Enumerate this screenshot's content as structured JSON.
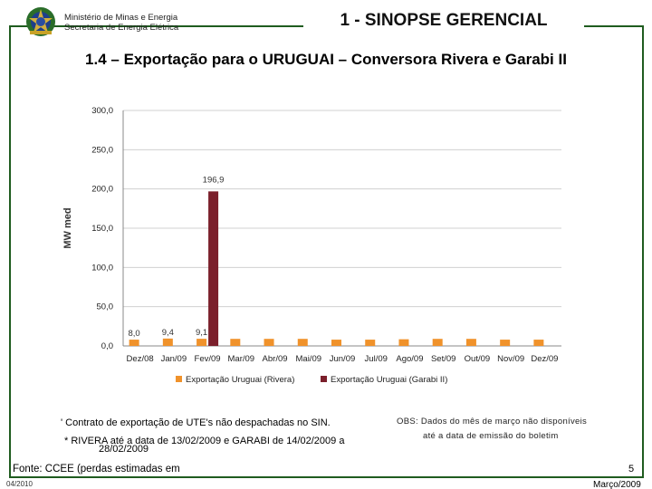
{
  "header": {
    "ministry_line1": "Ministério de Minas e Energia",
    "ministry_line2": "Secretaria de Energia Elétrica",
    "section_title": "1 - SINOPSE GERENCIAL"
  },
  "page_title": "1.4 – Exportação para o URUGUAI – Conversora Rivera e Garabi II",
  "chart_data": {
    "type": "bar",
    "title": "",
    "xlabel": "",
    "ylabel": "MW med",
    "ylim": [
      0,
      300
    ],
    "y_ticks": [
      "300,0",
      "250,0",
      "200,0",
      "150,0",
      "100,0",
      "50,0",
      "0,0"
    ],
    "categories": [
      "Dez/08",
      "Jan/09",
      "Fev/09",
      "Mar/09",
      "Abr/09",
      "Mai/09",
      "Jun/09",
      "Jul/09",
      "Ago/09",
      "Set/09",
      "Out/09",
      "Nov/09",
      "Dez/09"
    ],
    "series": [
      {
        "name": "Exportação Uruguai (Rivera)",
        "color": "#f0922b",
        "values": [
          8.0,
          9.4,
          9.1,
          9.0,
          9.0,
          9.0,
          8.0,
          8.0,
          8.5,
          9.0,
          9.0,
          8.0,
          8.0
        ],
        "labels": [
          "8,0",
          "9,4",
          "9,1",
          "",
          "",
          "",
          "",
          "",
          "",
          "",
          "",
          "",
          ""
        ]
      },
      {
        "name": "Exportação Uruguai (Garabi II)",
        "color": "#7b1f2b",
        "values": [
          null,
          null,
          196.9,
          null,
          null,
          null,
          null,
          null,
          null,
          null,
          null,
          null,
          null
        ],
        "labels": [
          "",
          "",
          "196,9",
          "",
          "",
          "",
          "",
          "",
          "",
          "",
          "",
          "",
          ""
        ]
      }
    ],
    "grid": true,
    "legend_position": "bottom"
  },
  "footnotes": {
    "contract": "' Contrato de exportação de UTE's não despachadas no SIN.",
    "dates_line1": "* RIVERA até a data de 13/02/2009 e GARABI de 14/02/2009 a",
    "dates_line2": "28/02/2009",
    "obs_line1": "OBS: Dados do mês de março não disponíveis",
    "obs_line2": "até a data de emissão do boletim",
    "source": "Fonte: CCEE (perdas estimadas em",
    "overlap_left": "04/2010"
  },
  "footer": {
    "page_number": "5",
    "date": "Março/2009"
  },
  "colors": {
    "frame": "#1f5c1f",
    "rivera": "#f0922b",
    "garabi": "#7b1f2b"
  }
}
